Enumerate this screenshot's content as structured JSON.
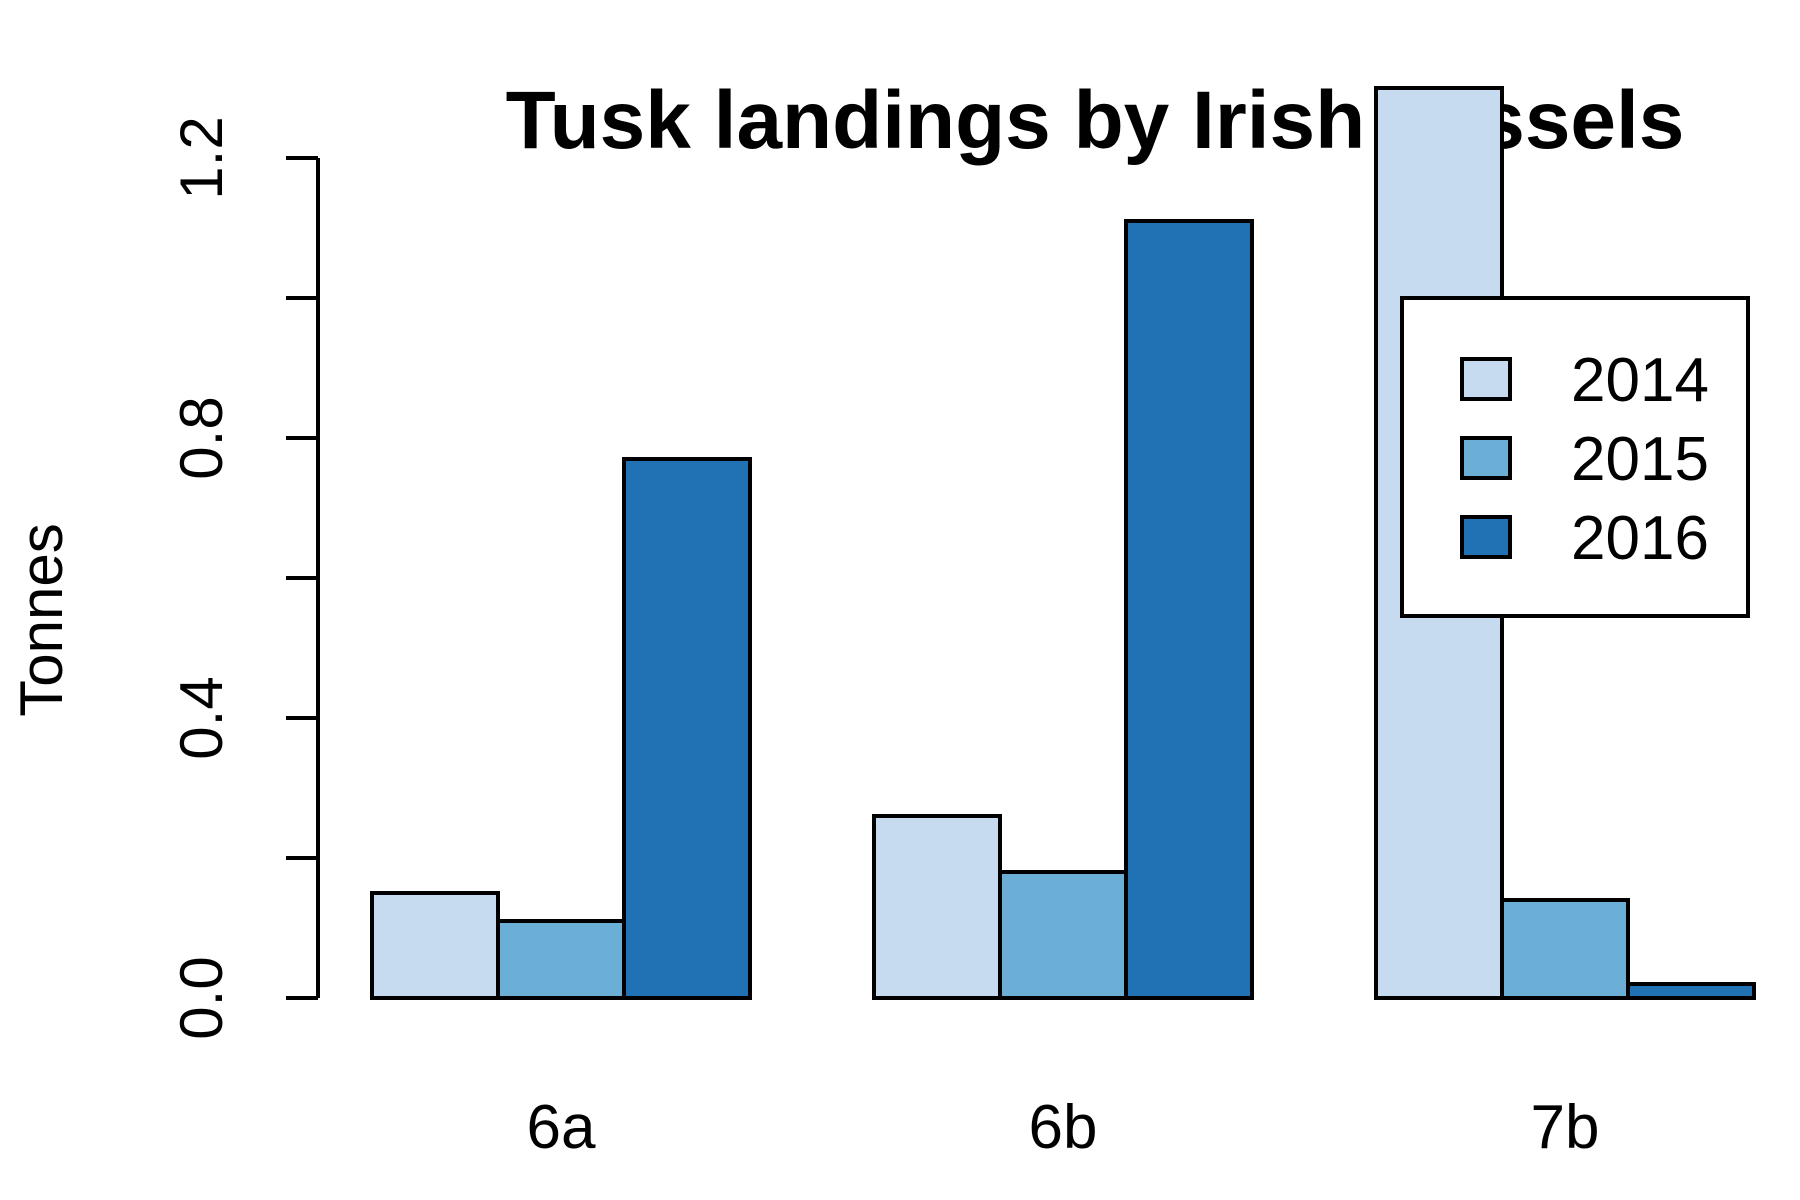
{
  "chart_data": {
    "type": "bar",
    "title": "Tusk landings by Irish vessels",
    "xlabel": "",
    "ylabel": "Tonnes",
    "categories": [
      "6a",
      "6b",
      "7b"
    ],
    "series": [
      {
        "name": "2014",
        "color": "#c6dbef",
        "values": [
          0.15,
          0.26,
          1.3
        ]
      },
      {
        "name": "2015",
        "color": "#6baed6",
        "values": [
          0.11,
          0.18,
          0.14
        ]
      },
      {
        "name": "2016",
        "color": "#2171b5",
        "values": [
          0.77,
          1.11,
          0.02
        ]
      }
    ],
    "ylim": [
      0,
      1.3
    ],
    "yticks": [
      "0.0",
      "",
      "0.4",
      "",
      "0.8",
      "",
      "1.2"
    ],
    "ytick_values": [
      0,
      0.2,
      0.4,
      0.6,
      0.8,
      1.0,
      1.2
    ],
    "grid": false,
    "legend_position": "top-right"
  }
}
